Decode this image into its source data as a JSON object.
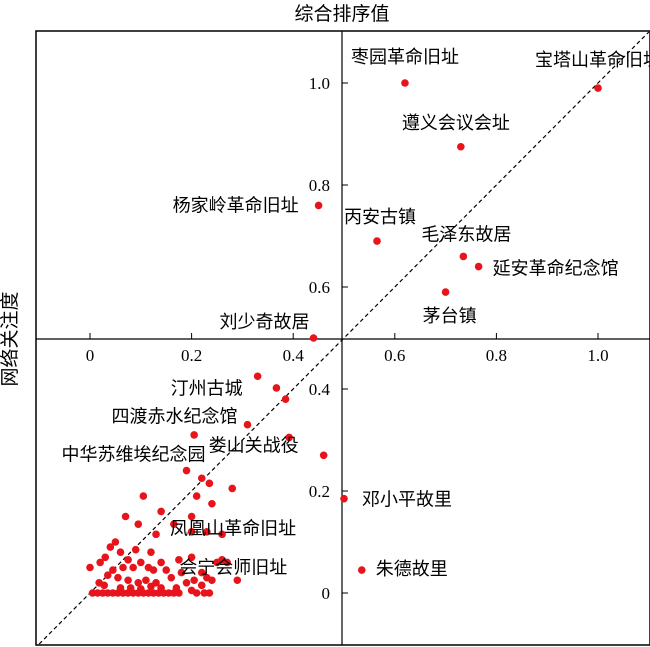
{
  "chart_data": {
    "type": "scatter",
    "title": "综合排序值",
    "ylabel": "网络关注度",
    "xlim": [
      -0.1,
      1.1
    ],
    "ylim": [
      -0.1,
      1.1
    ],
    "x_ticks": [
      "0",
      "0.2",
      "0.4",
      "0.6",
      "0.8",
      "1.0"
    ],
    "y_ticks": [
      "0",
      "0.2",
      "0.4",
      "0.6",
      "0.8",
      "1.0"
    ],
    "x_tick_values": [
      0,
      0.2,
      0.4,
      0.6,
      0.8,
      1.0
    ],
    "y_tick_values": [
      0,
      0.2,
      0.4,
      0.6,
      0.8,
      1.0
    ],
    "reference_line": "y = x",
    "marker_color": "#e8141c",
    "labeled_points": [
      {
        "name": "枣园革命旧址",
        "x": 0.62,
        "y": 1.0
      },
      {
        "name": "宝塔山革命旧址",
        "x": 1.0,
        "y": 0.99
      },
      {
        "name": "遵义会议会址",
        "x": 0.73,
        "y": 0.875
      },
      {
        "name": "杨家岭革命旧址",
        "x": 0.45,
        "y": 0.76
      },
      {
        "name": "丙安古镇",
        "x": 0.565,
        "y": 0.69
      },
      {
        "name": "毛泽东故居",
        "x": 0.735,
        "y": 0.66
      },
      {
        "name": "延安革命纪念馆",
        "x": 0.765,
        "y": 0.64
      },
      {
        "name": "茅台镇",
        "x": 0.7,
        "y": 0.59
      },
      {
        "name": "刘少奇故居",
        "x": 0.44,
        "y": 0.5
      },
      {
        "name": "汀州古城",
        "x": 0.33,
        "y": 0.425
      },
      {
        "name": "四渡赤水纪念馆",
        "x": 0.31,
        "y": 0.33
      },
      {
        "name": "中华苏维埃纪念园",
        "x": 0.19,
        "y": 0.24
      },
      {
        "name": "娄山关战役",
        "x": 0.46,
        "y": 0.27
      },
      {
        "name": "邓小平故里",
        "x": 0.5,
        "y": 0.185
      },
      {
        "name": "凤凰山革命旧址",
        "x": 0.26,
        "y": 0.115
      },
      {
        "name": "会宁会师旧址",
        "x": 0.29,
        "y": 0.025
      },
      {
        "name": "朱德故里",
        "x": 0.535,
        "y": 0.045
      }
    ],
    "other_points": [
      [
        0.367,
        0.402
      ],
      [
        0.385,
        0.38
      ],
      [
        0.392,
        0.305
      ],
      [
        0.205,
        0.31
      ],
      [
        0.22,
        0.225
      ],
      [
        0.235,
        0.215
      ],
      [
        0.28,
        0.205
      ],
      [
        0.24,
        0.175
      ],
      [
        0.21,
        0.19
      ],
      [
        0.105,
        0.19
      ],
      [
        0.14,
        0.16
      ],
      [
        0.2,
        0.15
      ],
      [
        0.07,
        0.15
      ],
      [
        0.095,
        0.135
      ],
      [
        0.165,
        0.135
      ],
      [
        0.13,
        0.115
      ],
      [
        0.23,
        0.12
      ],
      [
        0.2,
        0.12
      ],
      [
        0.05,
        0.1
      ],
      [
        0.04,
        0.09
      ],
      [
        0.06,
        0.08
      ],
      [
        0.09,
        0.085
      ],
      [
        0.12,
        0.08
      ],
      [
        0.02,
        0.06
      ],
      [
        0.03,
        0.07
      ],
      [
        0.075,
        0.065
      ],
      [
        0.1,
        0.06
      ],
      [
        0.14,
        0.06
      ],
      [
        0.2,
        0.07
      ],
      [
        0.25,
        0.06
      ],
      [
        0.26,
        0.065
      ],
      [
        0.27,
        0.06
      ],
      [
        0.175,
        0.065
      ],
      [
        0.15,
        0.045
      ],
      [
        0.18,
        0.04
      ],
      [
        0.22,
        0.04
      ],
      [
        0.23,
        0.03
      ],
      [
        0.205,
        0.025
      ],
      [
        0.115,
        0.05
      ],
      [
        0.085,
        0.05
      ],
      [
        0.065,
        0.05
      ],
      [
        0.045,
        0.045
      ],
      [
        0.125,
        0.045
      ],
      [
        0.035,
        0.035
      ],
      [
        0.055,
        0.03
      ],
      [
        0.075,
        0.025
      ],
      [
        0.095,
        0.02
      ],
      [
        0.11,
        0.025
      ],
      [
        0.13,
        0.02
      ],
      [
        0.16,
        0.03
      ],
      [
        0.19,
        0.02
      ],
      [
        0.24,
        0.025
      ],
      [
        0.0,
        0.05
      ],
      [
        0.005,
        0.0
      ],
      [
        0.015,
        0.0
      ],
      [
        0.025,
        0.0
      ],
      [
        0.035,
        0.0
      ],
      [
        0.045,
        0.0
      ],
      [
        0.055,
        0.0
      ],
      [
        0.065,
        0.0
      ],
      [
        0.075,
        0.0
      ],
      [
        0.085,
        0.0
      ],
      [
        0.095,
        0.0
      ],
      [
        0.105,
        0.0
      ],
      [
        0.115,
        0.0
      ],
      [
        0.125,
        0.0
      ],
      [
        0.135,
        0.0
      ],
      [
        0.145,
        0.0
      ],
      [
        0.155,
        0.0
      ],
      [
        0.165,
        0.0
      ],
      [
        0.175,
        0.0
      ],
      [
        0.21,
        0.0
      ],
      [
        0.225,
        0.0
      ],
      [
        0.235,
        0.0
      ],
      [
        0.018,
        0.02
      ],
      [
        0.028,
        0.015
      ],
      [
        0.06,
        0.01
      ],
      [
        0.08,
        0.01
      ],
      [
        0.1,
        0.008
      ],
      [
        0.14,
        0.01
      ],
      [
        0.17,
        0.01
      ],
      [
        0.2,
        0.005
      ],
      [
        0.22,
        0.015
      ],
      [
        0.12,
        0.013
      ]
    ]
  }
}
